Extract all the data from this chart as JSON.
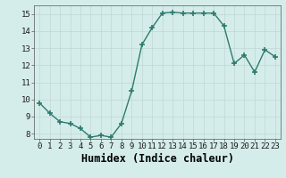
{
  "x": [
    0,
    1,
    2,
    3,
    4,
    5,
    6,
    7,
    8,
    9,
    10,
    11,
    12,
    13,
    14,
    15,
    16,
    17,
    18,
    19,
    20,
    21,
    22,
    23
  ],
  "y": [
    9.8,
    9.2,
    8.7,
    8.6,
    8.3,
    7.8,
    7.9,
    7.8,
    8.6,
    10.5,
    13.2,
    14.2,
    15.05,
    15.1,
    15.05,
    15.05,
    15.05,
    15.05,
    14.3,
    12.1,
    12.6,
    11.6,
    12.9,
    12.5
  ],
  "xlabel": "Humidex (Indice chaleur)",
  "ylim": [
    7.7,
    15.5
  ],
  "xlim": [
    -0.5,
    23.5
  ],
  "yticks": [
    8,
    9,
    10,
    11,
    12,
    13,
    14,
    15
  ],
  "xtick_labels": [
    "0",
    "1",
    "2",
    "3",
    "4",
    "5",
    "6",
    "7",
    "8",
    "9",
    "10",
    "11",
    "12",
    "13",
    "14",
    "15",
    "16",
    "17",
    "18",
    "19",
    "20",
    "21",
    "22",
    "23"
  ],
  "line_color": "#2d7a6e",
  "marker": "+",
  "marker_size": 4,
  "marker_lw": 1.2,
  "bg_color": "#d5edea",
  "grid_color": "#c0d8d5",
  "tick_fontsize": 6.5,
  "xlabel_fontsize": 8.5,
  "line_width": 1.0
}
